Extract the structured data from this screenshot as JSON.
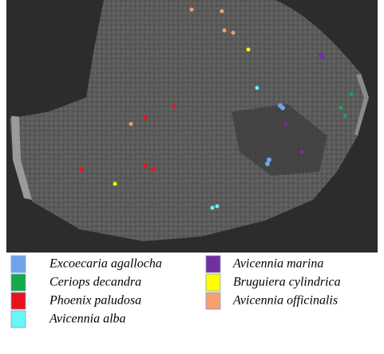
{
  "legend": {
    "items": [
      {
        "label": "Excoecaria agallocha",
        "color": "#6fa3ee"
      },
      {
        "label": "Ceriops decandra",
        "color": "#16a84c"
      },
      {
        "label": "Phoenix paludosa",
        "color": "#e8141c"
      },
      {
        "label": "Avicennia alba",
        "color": "#66f6f4"
      },
      {
        "label": "Avicennia marina",
        "color": "#7030a0"
      },
      {
        "label": "Bruguiera cylindrica",
        "color": "#ffff00"
      },
      {
        "label": "Avicennia officinalis",
        "color": "#f4a070"
      }
    ]
  }
}
